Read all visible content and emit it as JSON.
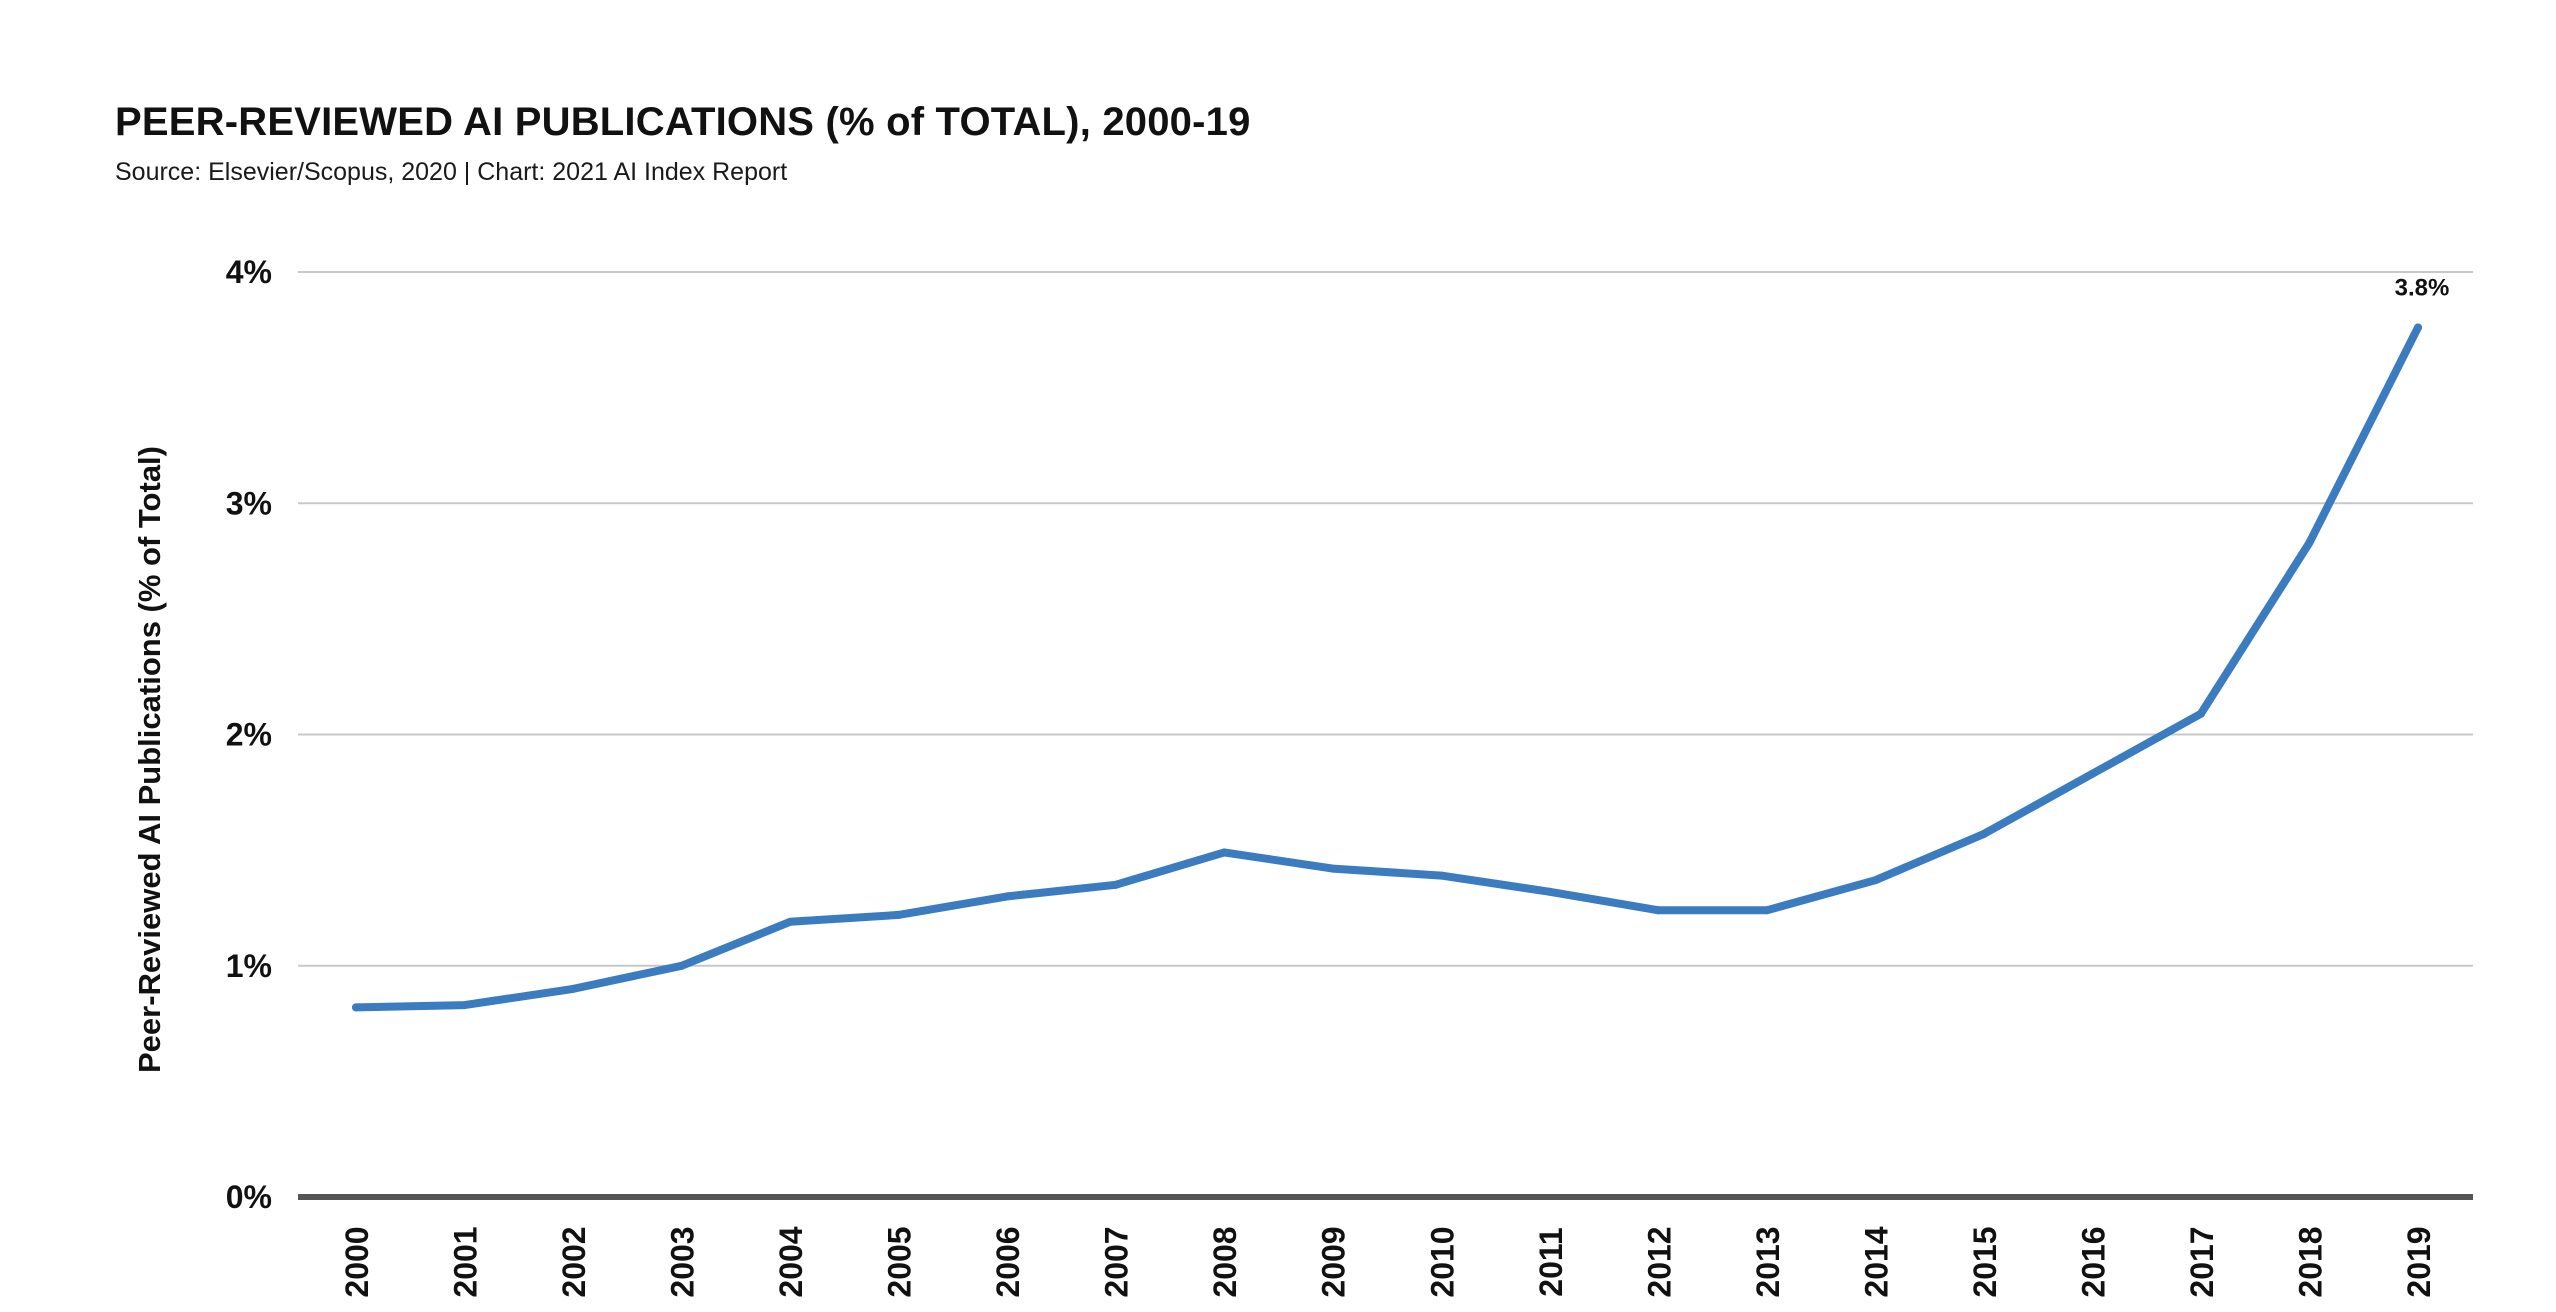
{
  "header": {
    "title": "PEER-REVIEWED AI PUBLICATIONS (% of TOTAL), 2000-19",
    "subtitle": "Source: Elsevier/Scopus, 2020 | Chart: 2021 AI Index Report"
  },
  "chart_data": {
    "type": "line",
    "ylabel": "Peer-Reviewed AI Publications (% of Total)",
    "xlabel": "",
    "categories": [
      "2000",
      "2001",
      "2002",
      "2003",
      "2004",
      "2005",
      "2006",
      "2007",
      "2008",
      "2009",
      "2010",
      "2011",
      "2012",
      "2013",
      "2014",
      "2015",
      "2016",
      "2017",
      "2018",
      "2019"
    ],
    "series": [
      {
        "values": [
          0.82,
          0.83,
          0.9,
          1.0,
          1.19,
          1.22,
          1.3,
          1.35,
          1.49,
          1.42,
          1.39,
          1.32,
          1.24,
          1.24,
          1.37,
          1.57,
          1.83,
          2.09,
          2.83,
          3.76
        ],
        "color": "#3b7bbf"
      }
    ],
    "ylim": [
      0,
      4
    ],
    "yticks": [
      0,
      1,
      2,
      3,
      4
    ],
    "ytick_labels": [
      "0%",
      "1%",
      "2%",
      "3%",
      "4%"
    ],
    "grid": true,
    "legend": "none",
    "annotations": [
      {
        "category": "2019",
        "text": "3.8%"
      }
    ]
  }
}
